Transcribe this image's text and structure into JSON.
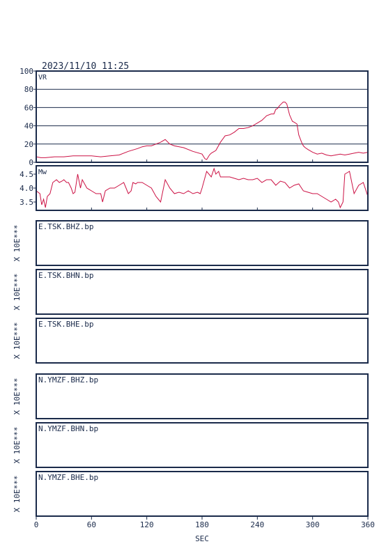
{
  "header": {
    "datetime": "2023/11/10  11:25"
  },
  "chart_data": [
    {
      "type": "line",
      "panel": "vr",
      "label": "VR",
      "xlim": [
        0,
        360
      ],
      "ylim": [
        0,
        100
      ],
      "yticks": [
        0,
        20,
        40,
        60,
        80,
        100
      ],
      "grid": true,
      "color": "#cc1144",
      "x": [
        0,
        5,
        10,
        20,
        30,
        40,
        50,
        60,
        70,
        80,
        90,
        100,
        110,
        115,
        120,
        125,
        130,
        135,
        140,
        145,
        150,
        160,
        170,
        180,
        183,
        185,
        188,
        190,
        195,
        200,
        205,
        210,
        215,
        220,
        225,
        230,
        235,
        240,
        245,
        250,
        255,
        258,
        260,
        262,
        264,
        266,
        268,
        270,
        272,
        275,
        278,
        280,
        283,
        285,
        288,
        290,
        292,
        295,
        300,
        305,
        310,
        315,
        320,
        325,
        330,
        335,
        340,
        345,
        350,
        355,
        360
      ],
      "y": [
        6,
        5,
        5,
        6,
        6,
        7,
        7,
        7,
        6,
        7,
        8,
        12,
        15,
        17,
        18,
        18,
        20,
        22,
        25,
        20,
        18,
        16,
        12,
        9,
        4,
        3,
        8,
        10,
        13,
        22,
        29,
        30,
        33,
        37,
        37,
        38,
        40,
        43,
        46,
        51,
        53,
        53,
        58,
        59,
        62,
        64,
        66,
        66,
        64,
        52,
        45,
        44,
        42,
        30,
        22,
        18,
        16,
        14,
        11,
        9,
        10,
        8,
        7,
        8,
        9,
        8,
        9,
        10,
        11,
        10,
        11
      ]
    },
    {
      "type": "line",
      "panel": "mw",
      "label": "Mw",
      "xlim": [
        0,
        360
      ],
      "ylim": [
        3.2,
        4.8
      ],
      "yticks": [
        3.5,
        4.0,
        4.5
      ],
      "grid": false,
      "color": "#cc1144",
      "x": [
        0,
        4,
        6,
        8,
        10,
        12,
        15,
        18,
        20,
        22,
        25,
        28,
        30,
        33,
        35,
        38,
        40,
        42,
        45,
        48,
        50,
        55,
        60,
        65,
        70,
        72,
        75,
        80,
        85,
        90,
        95,
        100,
        103,
        105,
        108,
        110,
        115,
        120,
        125,
        130,
        135,
        140,
        145,
        150,
        155,
        160,
        165,
        170,
        175,
        178,
        180,
        185,
        190,
        193,
        195,
        198,
        200,
        205,
        210,
        215,
        220,
        225,
        230,
        235,
        240,
        245,
        250,
        255,
        260,
        265,
        270,
        275,
        280,
        285,
        290,
        295,
        300,
        305,
        310,
        315,
        320,
        325,
        328,
        330,
        333,
        335,
        340,
        345,
        350,
        355,
        360
      ],
      "y": [
        3.9,
        3.8,
        3.4,
        3.6,
        3.3,
        3.7,
        3.8,
        4.2,
        4.25,
        4.3,
        4.2,
        4.25,
        4.3,
        4.2,
        4.2,
        4.0,
        3.8,
        3.85,
        4.5,
        4.0,
        4.3,
        4.0,
        3.9,
        3.8,
        3.8,
        3.5,
        3.9,
        4.0,
        4.0,
        4.1,
        4.2,
        3.8,
        3.9,
        4.2,
        4.15,
        4.2,
        4.2,
        4.1,
        4.0,
        3.7,
        3.5,
        4.3,
        4.0,
        3.8,
        3.85,
        3.8,
        3.9,
        3.8,
        3.85,
        3.8,
        4.0,
        4.6,
        4.4,
        4.7,
        4.5,
        4.6,
        4.4,
        4.4,
        4.4,
        4.35,
        4.3,
        4.35,
        4.3,
        4.3,
        4.35,
        4.2,
        4.3,
        4.3,
        4.1,
        4.25,
        4.2,
        4.0,
        4.1,
        4.15,
        3.9,
        3.85,
        3.8,
        3.8,
        3.7,
        3.6,
        3.5,
        3.6,
        3.5,
        3.3,
        3.5,
        4.5,
        4.6,
        3.8,
        4.1,
        4.2,
        3.7
      ]
    }
  ],
  "traces": [
    {
      "label": "E.TSK.BHZ.bp",
      "scale": "X 10E***"
    },
    {
      "label": "E.TSK.BHN.bp",
      "scale": "X 10E***"
    },
    {
      "label": "E.TSK.BHE.bp",
      "scale": "X 10E***"
    },
    {
      "label": "N.YMZF.BHZ.bp",
      "scale": "X 10E***"
    },
    {
      "label": "N.YMZF.BHN.bp",
      "scale": "X 10E***"
    },
    {
      "label": "N.YMZF.BHE.bp",
      "scale": "X 10E***"
    }
  ],
  "x_axis": {
    "ticks": [
      0,
      60,
      120,
      180,
      240,
      300,
      360
    ],
    "label": "SEC"
  }
}
